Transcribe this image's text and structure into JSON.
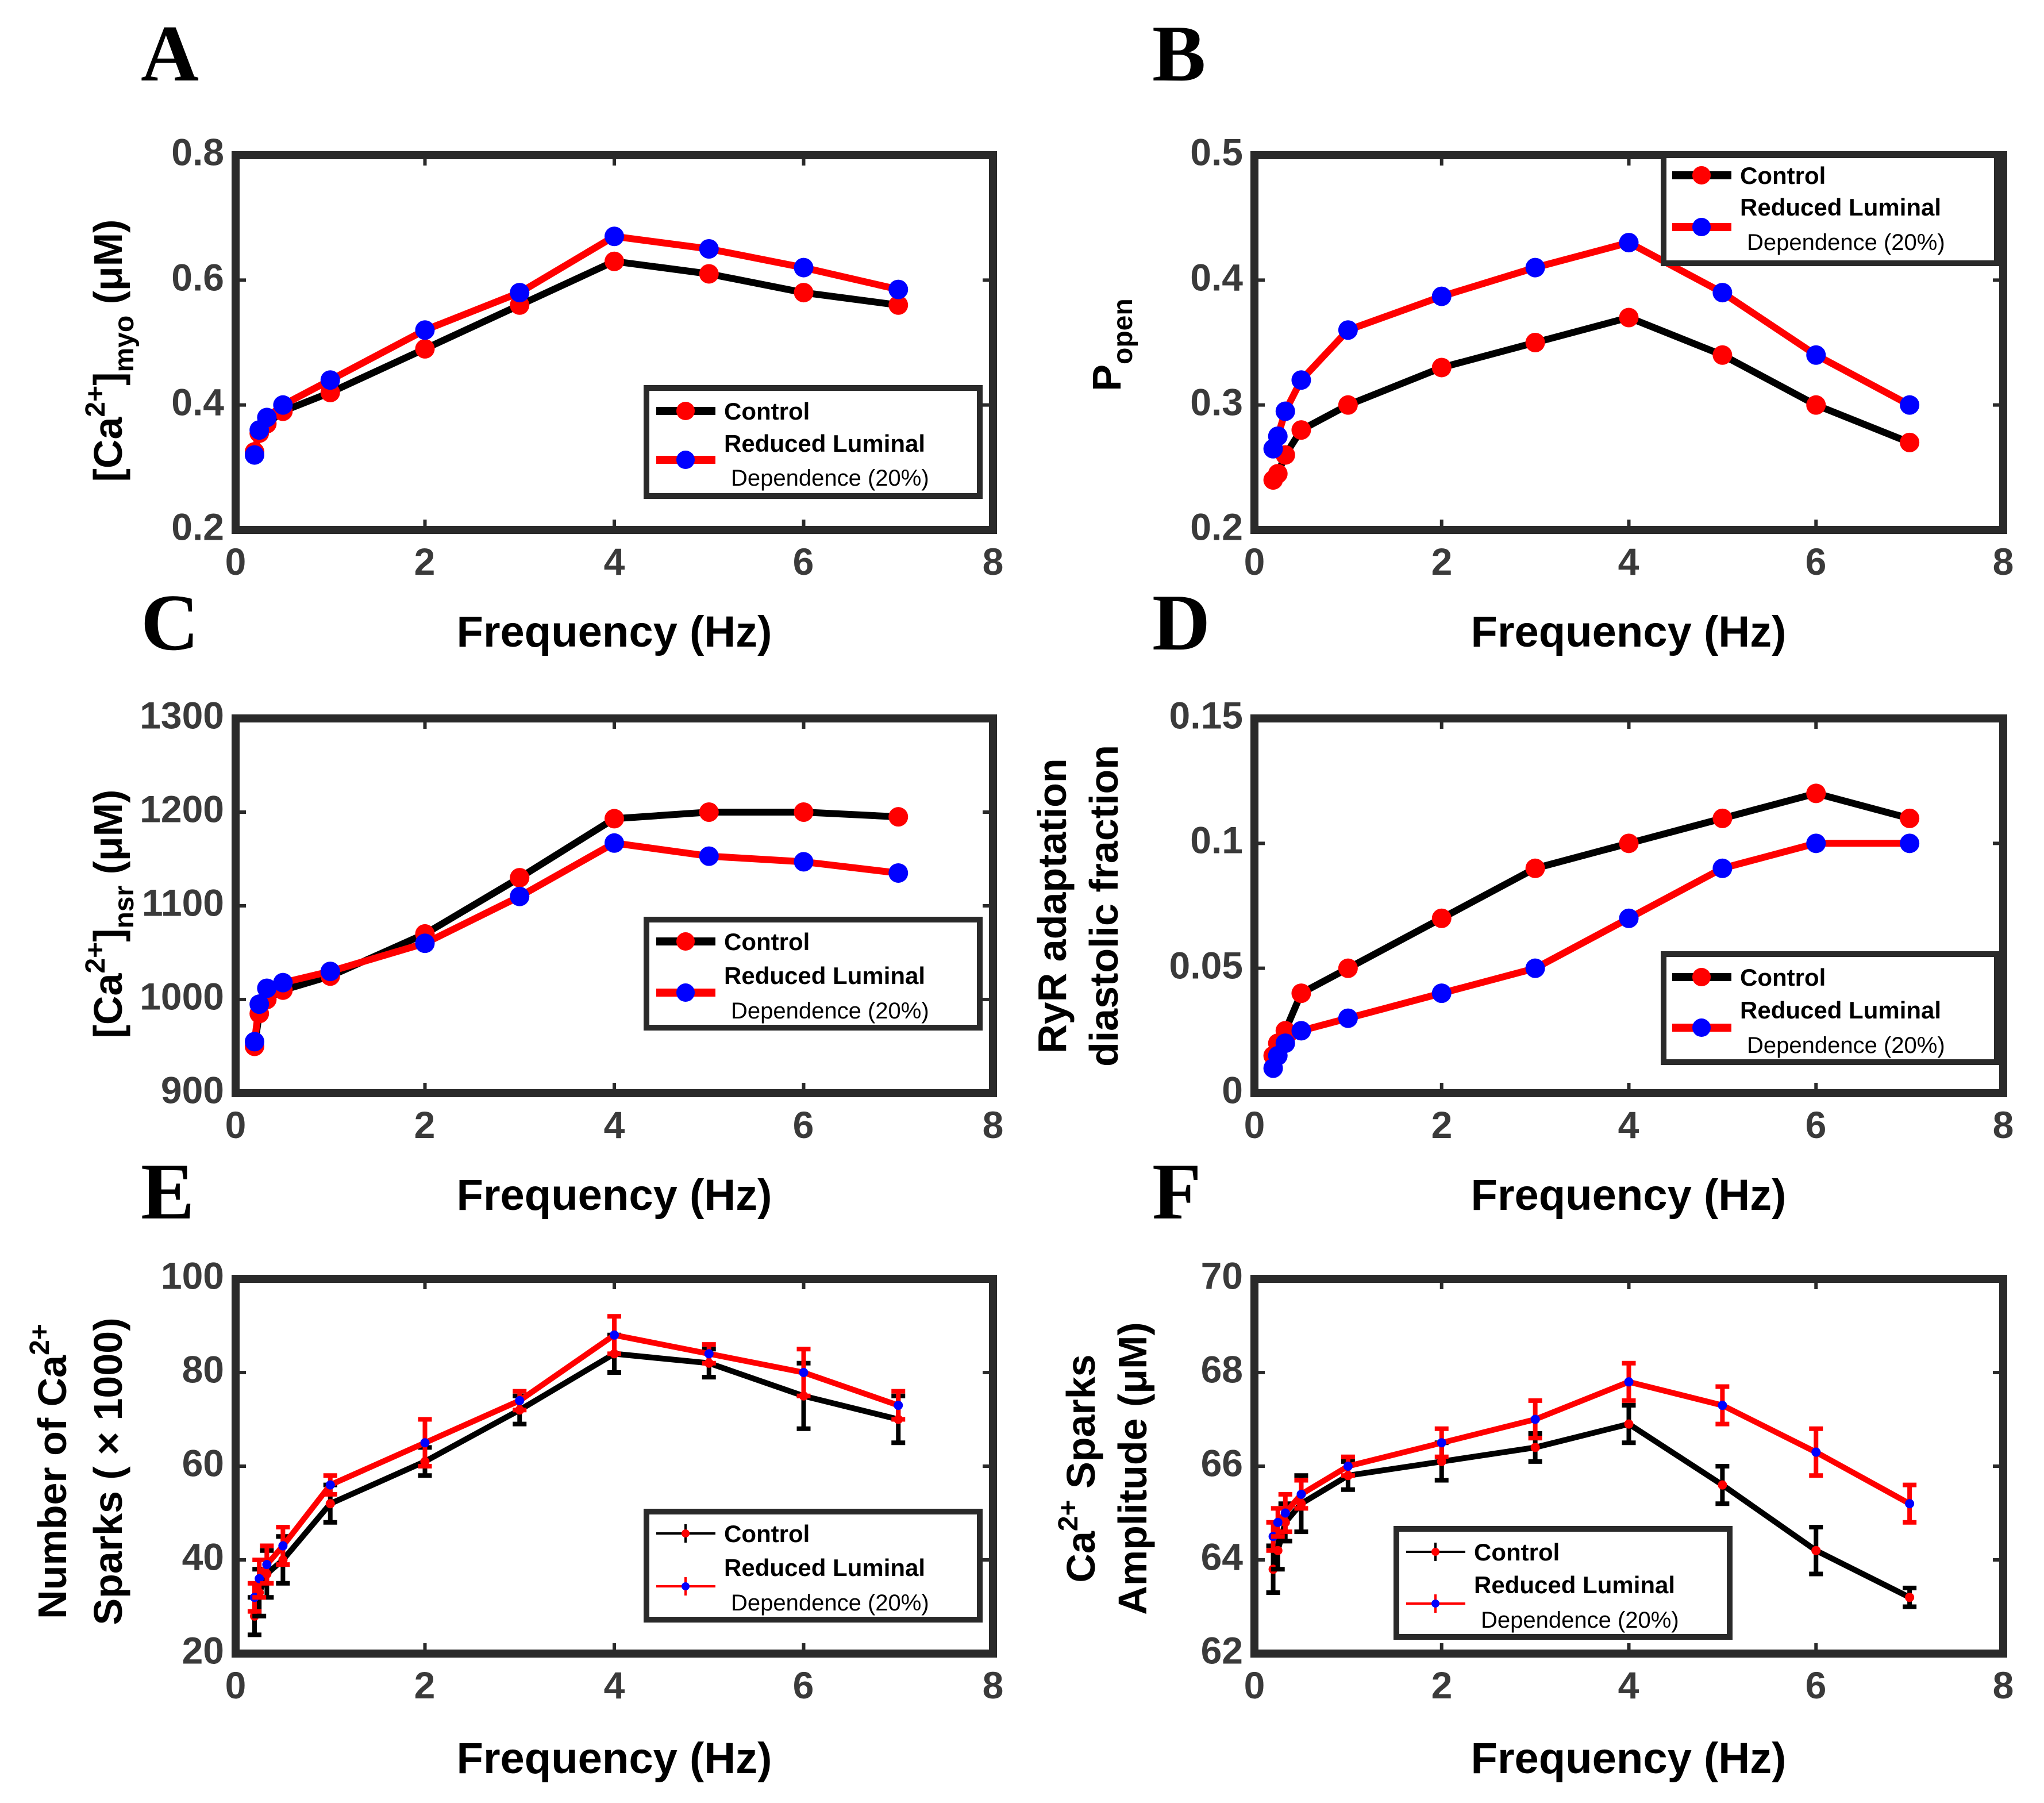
{
  "figure": {
    "panels": [
      {
        "id": "A",
        "letter": "A",
        "ylabel": {
          "pre": "[Ca",
          "sup": "2+",
          "mid": "]",
          "sub": "myo",
          "post": " (μM)"
        },
        "ytick_labels": [
          "0.2",
          "0.4",
          "0.6",
          "0.8"
        ],
        "xtick_labels": [
          "0",
          "2",
          "4",
          "6",
          "8"
        ]
      },
      {
        "id": "B",
        "letter": "B",
        "ylabel": {
          "pre": "P",
          "sup": "",
          "mid": "",
          "sub": "open",
          "post": ""
        },
        "ytick_labels": [
          "0.2",
          "0.3",
          "0.4",
          "0.5"
        ],
        "xtick_labels": [
          "0",
          "2",
          "4",
          "6",
          "8"
        ]
      },
      {
        "id": "C",
        "letter": "C",
        "ylabel": {
          "pre": "[Ca",
          "sup": "2+",
          "mid": "]",
          "sub": "nsr",
          "post": " (μM)"
        },
        "ytick_labels": [
          "900",
          "1000",
          "1100",
          "1200",
          "1300"
        ],
        "xtick_labels": [
          "0",
          "2",
          "4",
          "6",
          "8"
        ]
      },
      {
        "id": "D",
        "letter": "D",
        "ylabel_lines": [
          "RyR adaptation",
          "diastolic fraction"
        ],
        "ytick_labels": [
          "0",
          "0.05",
          "0.1",
          "0.15"
        ],
        "xtick_labels": [
          "0",
          "2",
          "4",
          "6",
          "8"
        ]
      },
      {
        "id": "E",
        "letter": "E",
        "ylabel_line1": {
          "pre": "Number of Ca",
          "sup": "2+"
        },
        "ylabel_line2": "Sparks ( × 1000)",
        "ytick_labels": [
          "20",
          "40",
          "60",
          "80",
          "100"
        ],
        "xtick_labels": [
          "0",
          "2",
          "4",
          "6",
          "8"
        ]
      },
      {
        "id": "F",
        "letter": "F",
        "ylabel_line1": {
          "pre": "Ca",
          "sup": "2+",
          "post": " Sparks"
        },
        "ylabel_line2": "Amplitude (μM)",
        "ytick_labels": [
          "62",
          "64",
          "66",
          "68",
          "70"
        ],
        "xtick_labels": [
          "0",
          "2",
          "4",
          "6",
          "8"
        ]
      }
    ],
    "legend": {
      "control": "Control",
      "reduced_line1": "Reduced Luminal",
      "reduced_line2": "Dependence (20%)"
    },
    "xlabel": "Frequency (Hz)"
  },
  "colors": {
    "control_line": "#000000",
    "control_marker": "#ff0000",
    "reduced_line": "#ff0000",
    "reduced_marker": "#0000ff",
    "axes": "#2a2a2a"
  },
  "chart_data": [
    {
      "type": "line",
      "panel": "A",
      "xlabel": "Frequency (Hz)",
      "ylabel": "[Ca2+]myo (μM)",
      "xlim": [
        0,
        8
      ],
      "ylim": [
        0.2,
        0.8
      ],
      "xticks": [
        0,
        2,
        4,
        6,
        8
      ],
      "yticks": [
        0.2,
        0.4,
        0.6,
        0.8
      ],
      "legend_position": "lower-right",
      "series": [
        {
          "name": "Control",
          "x": [
            0.2,
            0.25,
            0.33,
            0.5,
            1,
            2,
            3,
            4,
            5,
            6,
            7
          ],
          "y": [
            0.325,
            0.355,
            0.37,
            0.39,
            0.42,
            0.49,
            0.56,
            0.63,
            0.61,
            0.58,
            0.56
          ]
        },
        {
          "name": "Reduced Luminal Dependence (20%)",
          "x": [
            0.2,
            0.25,
            0.33,
            0.5,
            1,
            2,
            3,
            4,
            5,
            6,
            7
          ],
          "y": [
            0.32,
            0.36,
            0.38,
            0.4,
            0.44,
            0.52,
            0.58,
            0.67,
            0.65,
            0.62,
            0.585
          ]
        }
      ]
    },
    {
      "type": "line",
      "panel": "B",
      "xlabel": "Frequency (Hz)",
      "ylabel": "Popen",
      "xlim": [
        0,
        8
      ],
      "ylim": [
        0.2,
        0.5
      ],
      "xticks": [
        0,
        2,
        4,
        6,
        8
      ],
      "yticks": [
        0.2,
        0.3,
        0.4,
        0.5
      ],
      "legend_position": "top-right",
      "series": [
        {
          "name": "Control",
          "x": [
            0.2,
            0.25,
            0.33,
            0.5,
            1,
            2,
            3,
            4,
            5,
            6,
            7
          ],
          "y": [
            0.24,
            0.245,
            0.26,
            0.28,
            0.3,
            0.33,
            0.35,
            0.37,
            0.34,
            0.3,
            0.27
          ]
        },
        {
          "name": "Reduced Luminal Dependence (20%)",
          "x": [
            0.2,
            0.25,
            0.33,
            0.5,
            1,
            2,
            3,
            4,
            5,
            6,
            7
          ],
          "y": [
            0.265,
            0.275,
            0.295,
            0.32,
            0.36,
            0.387,
            0.41,
            0.43,
            0.39,
            0.34,
            0.3
          ]
        }
      ]
    },
    {
      "type": "line",
      "panel": "C",
      "xlabel": "Frequency (Hz)",
      "ylabel": "[Ca2+]nsr (μM)",
      "xlim": [
        0,
        8
      ],
      "ylim": [
        900,
        1300
      ],
      "xticks": [
        0,
        2,
        4,
        6,
        8
      ],
      "yticks": [
        900,
        1000,
        1100,
        1200,
        1300
      ],
      "legend_position": "lower-right",
      "series": [
        {
          "name": "Control",
          "x": [
            0.2,
            0.25,
            0.33,
            0.5,
            1,
            2,
            3,
            4,
            5,
            6,
            7
          ],
          "y": [
            950,
            985,
            1000,
            1010,
            1025,
            1070,
            1130,
            1193,
            1200,
            1200,
            1195
          ]
        },
        {
          "name": "Reduced Luminal Dependence (20%)",
          "x": [
            0.2,
            0.25,
            0.33,
            0.5,
            1,
            2,
            3,
            4,
            5,
            6,
            7
          ],
          "y": [
            955,
            995,
            1012,
            1018,
            1030,
            1060,
            1110,
            1167,
            1153,
            1147,
            1135
          ]
        }
      ]
    },
    {
      "type": "line",
      "panel": "D",
      "xlabel": "Frequency (Hz)",
      "ylabel": "RyR adaptation diastolic fraction",
      "xlim": [
        0,
        8
      ],
      "ylim": [
        0,
        0.15
      ],
      "xticks": [
        0,
        2,
        4,
        6,
        8
      ],
      "yticks": [
        0,
        0.05,
        0.1,
        0.15
      ],
      "legend_position": "lower-right",
      "series": [
        {
          "name": "Control",
          "x": [
            0.2,
            0.25,
            0.33,
            0.5,
            1,
            2,
            3,
            4,
            5,
            6,
            7
          ],
          "y": [
            0.015,
            0.02,
            0.025,
            0.04,
            0.05,
            0.07,
            0.09,
            0.1,
            0.11,
            0.12,
            0.11
          ]
        },
        {
          "name": "Reduced Luminal Dependence (20%)",
          "x": [
            0.2,
            0.25,
            0.33,
            0.5,
            1,
            2,
            3,
            4,
            5,
            6,
            7
          ],
          "y": [
            0.01,
            0.015,
            0.02,
            0.025,
            0.03,
            0.04,
            0.05,
            0.07,
            0.09,
            0.1,
            0.1
          ]
        }
      ]
    },
    {
      "type": "line",
      "panel": "E",
      "xlabel": "Frequency (Hz)",
      "ylabel": "Number of Ca2+ Sparks (×1000)",
      "xlim": [
        0,
        8
      ],
      "ylim": [
        20,
        100
      ],
      "xticks": [
        0,
        2,
        4,
        6,
        8
      ],
      "yticks": [
        20,
        40,
        60,
        80,
        100
      ],
      "legend_position": "lower-right",
      "error_bars": true,
      "series": [
        {
          "name": "Control",
          "x": [
            0.2,
            0.25,
            0.33,
            0.5,
            1,
            2,
            3,
            4,
            5,
            6,
            7
          ],
          "y": [
            28,
            33,
            37,
            40,
            52,
            61,
            72,
            84,
            82,
            75,
            70
          ],
          "err": [
            4,
            5,
            5,
            5,
            4,
            3,
            3,
            4,
            3,
            7,
            5
          ]
        },
        {
          "name": "Reduced Luminal Dependence (20%)",
          "x": [
            0.2,
            0.25,
            0.33,
            0.5,
            1,
            2,
            3,
            4,
            5,
            6,
            7
          ],
          "y": [
            32,
            36,
            39,
            43,
            56,
            65,
            74,
            88,
            84,
            80,
            73
          ],
          "err": [
            3,
            4,
            4,
            4,
            2,
            5,
            2,
            4,
            2,
            5,
            3
          ]
        }
      ]
    },
    {
      "type": "line",
      "panel": "F",
      "xlabel": "Frequency (Hz)",
      "ylabel": "Ca2+ Sparks Amplitude (μM)",
      "xlim": [
        0,
        8
      ],
      "ylim": [
        62,
        70
      ],
      "xticks": [
        0,
        2,
        4,
        6,
        8
      ],
      "yticks": [
        62,
        64,
        66,
        68,
        70
      ],
      "legend_position": "lower-right",
      "error_bars": true,
      "series": [
        {
          "name": "Control",
          "x": [
            0.2,
            0.25,
            0.33,
            0.5,
            1,
            2,
            3,
            4,
            5,
            6,
            7
          ],
          "y": [
            63.8,
            64.2,
            64.8,
            65.2,
            65.8,
            66.1,
            66.4,
            66.9,
            65.6,
            64.2,
            63.2
          ],
          "err": [
            0.5,
            0.4,
            0.4,
            0.6,
            0.3,
            0.4,
            0.3,
            0.4,
            0.4,
            0.5,
            0.2
          ]
        },
        {
          "name": "Reduced Luminal Dependence (20%)",
          "x": [
            0.2,
            0.25,
            0.33,
            0.5,
            1,
            2,
            3,
            4,
            5,
            6,
            7
          ],
          "y": [
            64.5,
            64.8,
            65.0,
            65.4,
            66.0,
            66.5,
            67.0,
            67.8,
            67.3,
            66.3,
            65.2
          ],
          "err": [
            0.3,
            0.3,
            0.4,
            0.3,
            0.2,
            0.3,
            0.4,
            0.4,
            0.4,
            0.5,
            0.4
          ]
        }
      ]
    }
  ]
}
